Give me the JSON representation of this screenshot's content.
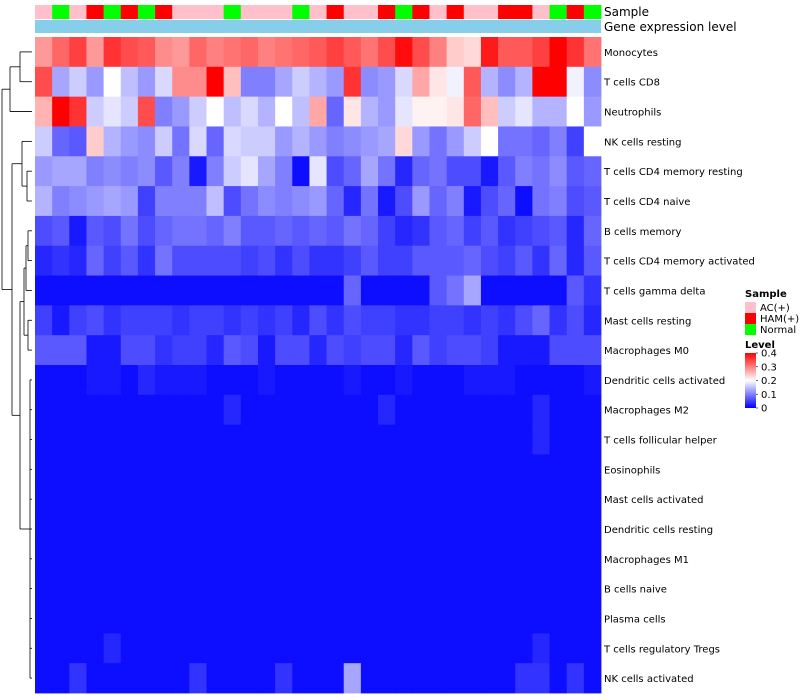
{
  "chart_data": {
    "type": "heatmap",
    "title": "",
    "annotation_labels": {
      "sample": "Sample",
      "expression": "Gene expression level"
    },
    "legends": {
      "sample": {
        "title": "Sample",
        "entries": [
          {
            "label": "AC(+)",
            "color": "#FFC0CB"
          },
          {
            "label": "HAM(+)",
            "color": "#FF0000"
          },
          {
            "label": "Normal",
            "color": "#00FF00"
          }
        ]
      },
      "level": {
        "title": "Level",
        "ticks": [
          "0.4",
          "0.3",
          "0.2",
          "0.1",
          "0"
        ],
        "tick_values": [
          0.4,
          0.3,
          0.2,
          0.1,
          0
        ],
        "colors": [
          "#0000FF",
          "#FFFFFF",
          "#FF0000"
        ],
        "range": [
          0,
          0.4
        ]
      }
    },
    "sample_groups": [
      "AC(+)",
      "Normal",
      "AC(+)",
      "HAM(+)",
      "Normal",
      "HAM(+)",
      "Normal",
      "HAM(+)",
      "AC(+)",
      "AC(+)",
      "AC(+)",
      "Normal",
      "AC(+)",
      "AC(+)",
      "AC(+)",
      "Normal",
      "AC(+)",
      "HAM(+)",
      "AC(+)",
      "AC(+)",
      "HAM(+)",
      "Normal",
      "HAM(+)",
      "AC(+)",
      "HAM(+)",
      "AC(+)",
      "AC(+)",
      "HAM(+)",
      "HAM(+)",
      "AC(+)",
      "Normal",
      "HAM(+)",
      "Normal"
    ],
    "rows": [
      {
        "label": "Monocytes",
        "values": [
          0.28,
          0.32,
          0.35,
          0.28,
          0.36,
          0.34,
          0.33,
          0.29,
          0.28,
          0.32,
          0.3,
          0.31,
          0.32,
          0.3,
          0.31,
          0.32,
          0.33,
          0.35,
          0.33,
          0.31,
          0.34,
          0.39,
          0.34,
          0.3,
          0.24,
          0.23,
          0.38,
          0.33,
          0.33,
          0.35,
          0.4,
          0.36,
          0.31
        ]
      },
      {
        "label": "T cells CD8",
        "values": [
          0.34,
          0.13,
          0.16,
          0.12,
          0.2,
          0.15,
          0.12,
          0.17,
          0.29,
          0.29,
          0.4,
          0.25,
          0.1,
          0.1,
          0.13,
          0.16,
          0.14,
          0.12,
          0.36,
          0.11,
          0.12,
          0.17,
          0.27,
          0.22,
          0.19,
          0.33,
          0.14,
          0.11,
          0.14,
          0.4,
          0.4,
          0.19,
          0.11
        ]
      },
      {
        "label": "Neutrophils",
        "values": [
          0.26,
          0.4,
          0.36,
          0.16,
          0.18,
          0.16,
          0.34,
          0.1,
          0.12,
          0.16,
          0.2,
          0.15,
          0.17,
          0.14,
          0.2,
          0.15,
          0.27,
          0.08,
          0.22,
          0.14,
          0.12,
          0.18,
          0.21,
          0.21,
          0.22,
          0.32,
          0.25,
          0.16,
          0.18,
          0.14,
          0.14,
          0.2,
          0.12
        ]
      },
      {
        "label": "NK cells resting",
        "values": [
          0.16,
          0.08,
          0.07,
          0.24,
          0.14,
          0.12,
          0.11,
          0.16,
          0.09,
          0.17,
          0.08,
          0.17,
          0.16,
          0.16,
          0.12,
          0.14,
          0.12,
          0.1,
          0.11,
          0.12,
          0.13,
          0.23,
          0.12,
          0.09,
          0.12,
          0.16,
          0.2,
          0.09,
          0.09,
          0.08,
          0.1,
          0.05,
          0.2
        ]
      },
      {
        "label": "T cells CD4 memory resting",
        "values": [
          0.12,
          0.13,
          0.13,
          0.1,
          0.11,
          0.1,
          0.11,
          0.07,
          0.1,
          0.02,
          0.1,
          0.16,
          0.18,
          0.13,
          0.1,
          0.01,
          0.18,
          0.06,
          0.08,
          0.13,
          0.09,
          0.03,
          0.08,
          0.09,
          0.06,
          0.06,
          0.02,
          0.07,
          0.1,
          0.09,
          0.11,
          0.07,
          0.08
        ]
      },
      {
        "label": "T cells CD4 naive",
        "values": [
          0.14,
          0.1,
          0.11,
          0.12,
          0.13,
          0.12,
          0.05,
          0.1,
          0.1,
          0.1,
          0.15,
          0.06,
          0.09,
          0.11,
          0.1,
          0.11,
          0.12,
          0.08,
          0.03,
          0.09,
          0.02,
          0.06,
          0.12,
          0.08,
          0.1,
          0.02,
          0.06,
          0.08,
          0.01,
          0.09,
          0.1,
          0.06,
          0.07
        ]
      },
      {
        "label": "B cells memory",
        "values": [
          0.06,
          0.07,
          0.02,
          0.07,
          0.06,
          0.09,
          0.06,
          0.08,
          0.09,
          0.09,
          0.08,
          0.1,
          0.07,
          0.07,
          0.08,
          0.07,
          0.08,
          0.07,
          0.09,
          0.08,
          0.05,
          0.03,
          0.04,
          0.07,
          0.08,
          0.05,
          0.07,
          0.04,
          0.05,
          0.06,
          0.07,
          0.03,
          0.08
        ]
      },
      {
        "label": "T cells CD4 memory activated",
        "values": [
          0.03,
          0.04,
          0.03,
          0.08,
          0.05,
          0.07,
          0.04,
          0.09,
          0.06,
          0.06,
          0.06,
          0.06,
          0.05,
          0.06,
          0.04,
          0.06,
          0.04,
          0.04,
          0.05,
          0.07,
          0.05,
          0.05,
          0.07,
          0.07,
          0.07,
          0.08,
          0.06,
          0.05,
          0.07,
          0.04,
          0.08,
          0.03,
          0.07
        ]
      },
      {
        "label": "T cells gamma delta",
        "values": [
          0.01,
          0.01,
          0.01,
          0.01,
          0.01,
          0.01,
          0.01,
          0.01,
          0.01,
          0.01,
          0.01,
          0.01,
          0.01,
          0.01,
          0.01,
          0.01,
          0.01,
          0.01,
          0.08,
          0.01,
          0.01,
          0.01,
          0.01,
          0.07,
          0.09,
          0.13,
          0.01,
          0.01,
          0.01,
          0.01,
          0.01,
          0.07,
          0.04
        ]
      },
      {
        "label": "Mast cells resting",
        "values": [
          0.05,
          0.02,
          0.05,
          0.06,
          0.04,
          0.05,
          0.05,
          0.05,
          0.04,
          0.05,
          0.05,
          0.04,
          0.05,
          0.04,
          0.05,
          0.03,
          0.06,
          0.04,
          0.06,
          0.05,
          0.05,
          0.04,
          0.04,
          0.05,
          0.05,
          0.04,
          0.05,
          0.04,
          0.06,
          0.08,
          0.04,
          0.06,
          0.03
        ]
      },
      {
        "label": "Macrophages M0",
        "values": [
          0.07,
          0.07,
          0.07,
          0.02,
          0.02,
          0.06,
          0.06,
          0.04,
          0.05,
          0.05,
          0.03,
          0.07,
          0.06,
          0.02,
          0.06,
          0.06,
          0.03,
          0.06,
          0.05,
          0.06,
          0.06,
          0.03,
          0.07,
          0.05,
          0.06,
          0.06,
          0.05,
          0.02,
          0.02,
          0.02,
          0.06,
          0.06,
          0.06
        ]
      },
      {
        "label": "Dendritic cells activated",
        "values": [
          0.01,
          0.01,
          0.01,
          0.02,
          0.02,
          0.01,
          0.03,
          0.02,
          0.02,
          0.02,
          0.01,
          0.01,
          0.01,
          0.02,
          0.01,
          0.01,
          0.01,
          0.01,
          0.02,
          0.01,
          0.01,
          0.02,
          0.01,
          0.01,
          0.01,
          0.02,
          0.02,
          0.02,
          0.01,
          0.01,
          0.01,
          0.01,
          0.02
        ]
      },
      {
        "label": "Macrophages M2",
        "values": [
          0.01,
          0.01,
          0.01,
          0.01,
          0.01,
          0.01,
          0.01,
          0.01,
          0.01,
          0.01,
          0.01,
          0.03,
          0.01,
          0.01,
          0.01,
          0.01,
          0.01,
          0.01,
          0.01,
          0.01,
          0.03,
          0.01,
          0.01,
          0.01,
          0.01,
          0.01,
          0.01,
          0.01,
          0.01,
          0.03,
          0.01,
          0.01,
          0.01
        ]
      },
      {
        "label": "T cells follicular helper",
        "values": [
          0.01,
          0.01,
          0.01,
          0.01,
          0.01,
          0.01,
          0.01,
          0.01,
          0.01,
          0.01,
          0.01,
          0.01,
          0.01,
          0.01,
          0.01,
          0.01,
          0.01,
          0.01,
          0.01,
          0.01,
          0.01,
          0.01,
          0.01,
          0.01,
          0.01,
          0.01,
          0.01,
          0.01,
          0.01,
          0.03,
          0.01,
          0.01,
          0.01
        ]
      },
      {
        "label": "Eosinophils",
        "values": [
          0.01,
          0.01,
          0.01,
          0.01,
          0.01,
          0.01,
          0.01,
          0.01,
          0.01,
          0.01,
          0.01,
          0.01,
          0.01,
          0.01,
          0.01,
          0.01,
          0.01,
          0.01,
          0.01,
          0.01,
          0.01,
          0.01,
          0.01,
          0.01,
          0.01,
          0.01,
          0.01,
          0.01,
          0.01,
          0.01,
          0.01,
          0.01,
          0.01
        ]
      },
      {
        "label": "Mast cells activated",
        "values": [
          0.01,
          0.01,
          0.01,
          0.01,
          0.01,
          0.01,
          0.01,
          0.01,
          0.01,
          0.01,
          0.01,
          0.01,
          0.01,
          0.01,
          0.01,
          0.01,
          0.01,
          0.01,
          0.01,
          0.01,
          0.01,
          0.01,
          0.01,
          0.01,
          0.01,
          0.01,
          0.01,
          0.01,
          0.01,
          0.01,
          0.01,
          0.01,
          0.01
        ]
      },
      {
        "label": "Dendritic cells resting",
        "values": [
          0.01,
          0.01,
          0.01,
          0.01,
          0.01,
          0.01,
          0.01,
          0.01,
          0.01,
          0.01,
          0.01,
          0.01,
          0.01,
          0.01,
          0.01,
          0.01,
          0.01,
          0.01,
          0.01,
          0.01,
          0.01,
          0.01,
          0.01,
          0.01,
          0.01,
          0.01,
          0.01,
          0.01,
          0.01,
          0.01,
          0.01,
          0.01,
          0.01
        ]
      },
      {
        "label": "Macrophages M1",
        "values": [
          0.01,
          0.01,
          0.01,
          0.01,
          0.01,
          0.01,
          0.01,
          0.01,
          0.01,
          0.01,
          0.01,
          0.01,
          0.01,
          0.01,
          0.01,
          0.01,
          0.01,
          0.01,
          0.01,
          0.01,
          0.01,
          0.01,
          0.01,
          0.01,
          0.01,
          0.01,
          0.01,
          0.01,
          0.01,
          0.01,
          0.01,
          0.01,
          0.01
        ]
      },
      {
        "label": "B cells naive",
        "values": [
          0.01,
          0.01,
          0.01,
          0.01,
          0.01,
          0.01,
          0.01,
          0.01,
          0.01,
          0.01,
          0.01,
          0.01,
          0.01,
          0.01,
          0.01,
          0.01,
          0.01,
          0.01,
          0.01,
          0.01,
          0.01,
          0.01,
          0.01,
          0.01,
          0.01,
          0.01,
          0.01,
          0.01,
          0.01,
          0.01,
          0.01,
          0.01,
          0.01
        ]
      },
      {
        "label": "Plasma cells",
        "values": [
          0.01,
          0.01,
          0.01,
          0.01,
          0.01,
          0.01,
          0.01,
          0.01,
          0.01,
          0.01,
          0.01,
          0.01,
          0.01,
          0.01,
          0.01,
          0.01,
          0.01,
          0.01,
          0.01,
          0.01,
          0.01,
          0.01,
          0.01,
          0.01,
          0.01,
          0.01,
          0.01,
          0.01,
          0.01,
          0.01,
          0.01,
          0.01,
          0.01
        ]
      },
      {
        "label": "T cells regulatory  Tregs",
        "values": [
          0.01,
          0.01,
          0.01,
          0.01,
          0.03,
          0.01,
          0.01,
          0.01,
          0.01,
          0.01,
          0.01,
          0.01,
          0.01,
          0.01,
          0.01,
          0.01,
          0.01,
          0.01,
          0.01,
          0.01,
          0.01,
          0.01,
          0.01,
          0.01,
          0.01,
          0.01,
          0.01,
          0.01,
          0.01,
          0.03,
          0.01,
          0.01,
          0.01
        ]
      },
      {
        "label": "NK cells activated",
        "values": [
          0.01,
          0.01,
          0.04,
          0.01,
          0.01,
          0.01,
          0.01,
          0.01,
          0.01,
          0.04,
          0.01,
          0.01,
          0.01,
          0.01,
          0.04,
          0.01,
          0.01,
          0.01,
          0.13,
          0.01,
          0.01,
          0.01,
          0.01,
          0.01,
          0.01,
          0.01,
          0.01,
          0.01,
          0.04,
          0.04,
          0.01,
          0.04,
          0.01
        ]
      }
    ]
  }
}
